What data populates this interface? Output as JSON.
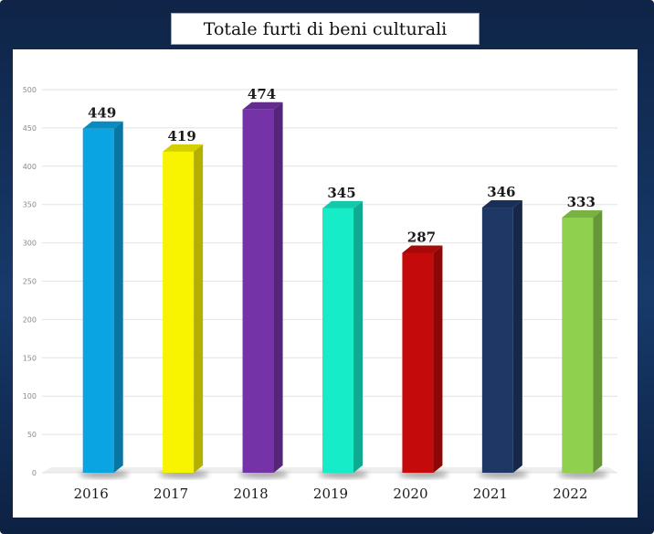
{
  "chart_data": {
    "type": "bar",
    "title": "Totale furti di beni culturali",
    "xlabel": "",
    "ylabel": "",
    "categories": [
      "2016",
      "2017",
      "2018",
      "2019",
      "2020",
      "2021",
      "2022"
    ],
    "values": [
      449,
      419,
      474,
      345,
      287,
      346,
      333
    ],
    "colors": [
      "#0aa4e2",
      "#f8f400",
      "#7433a6",
      "#16ecc8",
      "#c40a0a",
      "#1f3765",
      "#8fd04f"
    ],
    "yticks": [
      0,
      50,
      100,
      150,
      200,
      250,
      300,
      350,
      400,
      450,
      500
    ],
    "ylim": [
      0,
      500
    ],
    "grid": true,
    "data_labels": true
  }
}
